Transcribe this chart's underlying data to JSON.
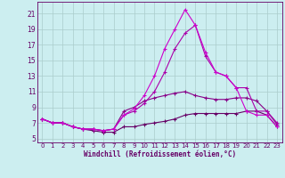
{
  "x": [
    0,
    1,
    2,
    3,
    4,
    5,
    6,
    7,
    8,
    9,
    10,
    11,
    12,
    13,
    14,
    15,
    16,
    17,
    18,
    19,
    20,
    21,
    22,
    23
  ],
  "line_high": [
    7.5,
    7.0,
    7.0,
    6.5,
    6.2,
    6.2,
    6.0,
    6.2,
    8.0,
    8.8,
    10.5,
    13.0,
    16.5,
    19.0,
    21.5,
    19.5,
    16.0,
    13.5,
    13.0,
    11.5,
    8.5,
    8.0,
    8.0,
    6.5
  ],
  "line_mid1": [
    7.5,
    7.0,
    7.0,
    6.5,
    6.2,
    6.2,
    6.0,
    6.2,
    8.0,
    8.5,
    9.5,
    11.0,
    13.5,
    16.5,
    18.5,
    19.5,
    15.5,
    13.5,
    13.0,
    11.5,
    11.5,
    8.5,
    8.5,
    7.0
  ],
  "line_mid2": [
    7.5,
    7.0,
    7.0,
    6.5,
    6.2,
    6.2,
    6.0,
    6.2,
    8.5,
    9.0,
    9.8,
    10.2,
    10.5,
    10.8,
    11.0,
    10.5,
    10.2,
    10.0,
    10.0,
    10.2,
    10.2,
    9.8,
    8.5,
    6.8
  ],
  "line_low": [
    7.5,
    7.0,
    7.0,
    6.5,
    6.2,
    6.0,
    5.8,
    5.8,
    6.5,
    6.5,
    6.8,
    7.0,
    7.2,
    7.5,
    8.0,
    8.2,
    8.2,
    8.2,
    8.2,
    8.2,
    8.5,
    8.5,
    8.0,
    6.5
  ],
  "color_high": "#cc00cc",
  "color_mid1": "#aa00aa",
  "color_mid2": "#880088",
  "color_low": "#660066",
  "bg_color": "#cceef0",
  "grid_color": "#aacccc",
  "tick_color": "#660066",
  "xlabel": "Windchill (Refroidissement éolien,°C)",
  "xlim_min": -0.5,
  "xlim_max": 23.5,
  "ylim_min": 4.5,
  "ylim_max": 22.5,
  "yticks": [
    5,
    7,
    9,
    11,
    13,
    15,
    17,
    19,
    21
  ],
  "xticks": [
    0,
    1,
    2,
    3,
    4,
    5,
    6,
    7,
    8,
    9,
    10,
    11,
    12,
    13,
    14,
    15,
    16,
    17,
    18,
    19,
    20,
    21,
    22,
    23
  ]
}
